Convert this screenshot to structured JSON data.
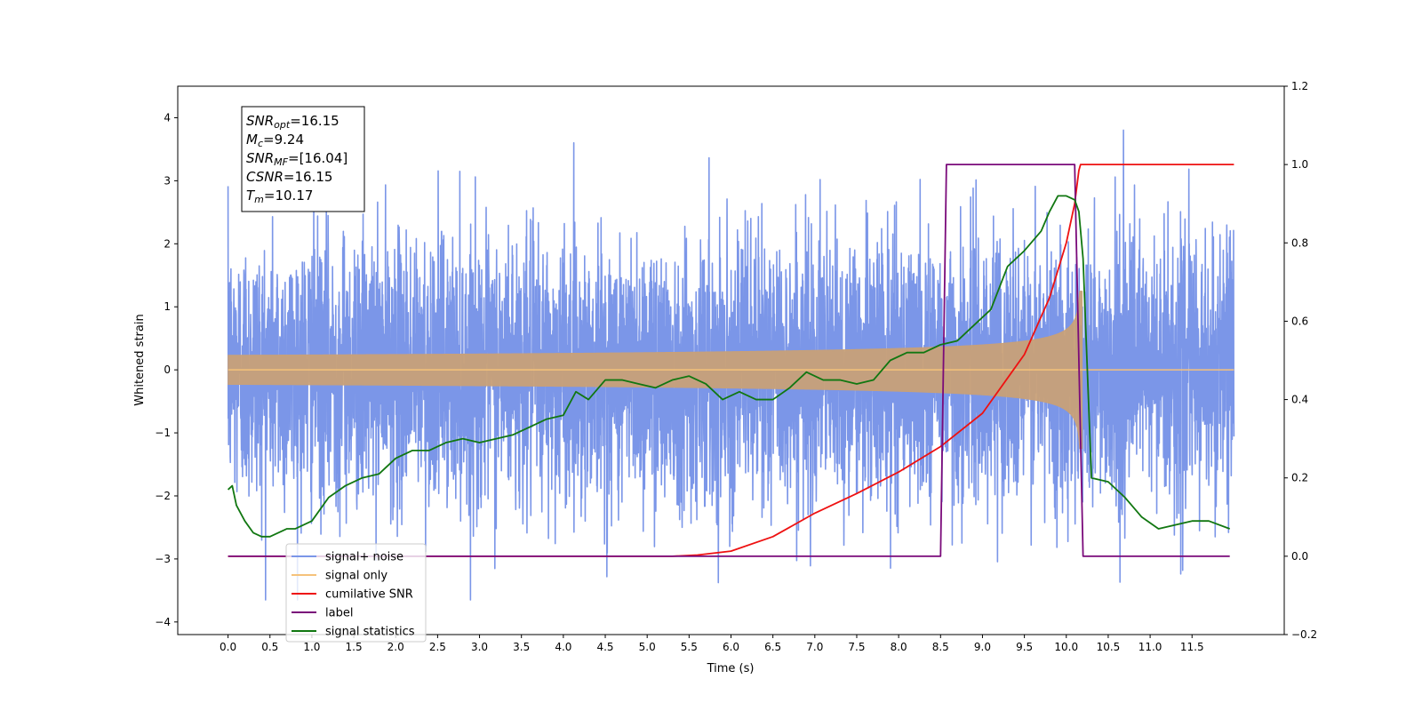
{
  "chart_data": {
    "type": "line",
    "xlabel": "Time (s)",
    "ylabel_left": "Whitened strain",
    "ylabel_right": "",
    "xlim": [
      -0.6,
      12.6
    ],
    "ylim_left": [
      -4.2,
      4.5
    ],
    "ylim_right": [
      -0.2,
      1.2
    ],
    "xticks": [
      "0.0",
      "0.5",
      "1.0",
      "1.5",
      "2.0",
      "2.5",
      "3.0",
      "3.5",
      "4.0",
      "4.5",
      "5.0",
      "5.5",
      "6.0",
      "6.5",
      "7.0",
      "7.5",
      "8.0",
      "8.5",
      "9.0",
      "9.5",
      "10.0",
      "10.5",
      "11.0",
      "11.5"
    ],
    "yticks_left": [
      "−4",
      "−3",
      "−2",
      "−1",
      "0",
      "1",
      "2",
      "3",
      "4"
    ],
    "yticks_right": [
      "−0.2",
      "0.0",
      "0.2",
      "0.4",
      "0.6",
      "0.8",
      "1.0",
      "1.2"
    ],
    "annotation": {
      "lines": [
        {
          "sym": "SNR",
          "sub": "opt",
          "val": "=16.15"
        },
        {
          "sym": "M",
          "sub": "c",
          "val": "=9.24"
        },
        {
          "sym": "SNR",
          "sub": "MF",
          "val": "=[16.04]"
        },
        {
          "sym": "CSNR",
          "sub": "",
          "val": "=16.15"
        },
        {
          "sym": "T",
          "sub": "m",
          "val": "=10.17"
        }
      ]
    },
    "legend": {
      "position": "lower-left",
      "entries": [
        {
          "name": "signal+ noise",
          "color": "#7b96e8"
        },
        {
          "name": "signal only",
          "color": "#f5c27a"
        },
        {
          "name": "cumilative SNR",
          "color": "#ee1111"
        },
        {
          "name": "label",
          "color": "#7a0a7a"
        },
        {
          "name": "signal statistics",
          "color": "#117711"
        }
      ]
    },
    "series": [
      {
        "name": "signal+ noise",
        "axis": "left",
        "x_range": [
          0.0,
          12.0
        ],
        "amplitude_sigma": 1.0,
        "color": "#7b96e8"
      },
      {
        "name": "signal only",
        "axis": "left",
        "x_range": [
          0.0,
          12.0
        ],
        "merger_time": 10.17,
        "peak_amplitude": 1.25,
        "color": "#c8a078"
      },
      {
        "name": "cumilative SNR",
        "axis": "right",
        "x": [
          0.0,
          5.3,
          5.6,
          6.0,
          6.5,
          7.0,
          7.5,
          8.0,
          8.5,
          9.0,
          9.5,
          9.8,
          10.0,
          10.1,
          10.15,
          10.17,
          10.18,
          11.5,
          12.0
        ],
        "y": [
          0.0,
          0.0,
          0.003,
          0.013,
          0.05,
          0.11,
          0.16,
          0.215,
          0.28,
          0.365,
          0.515,
          0.66,
          0.8,
          0.9,
          0.985,
          1.0,
          1.0,
          1.0,
          1.0
        ],
        "color": "#ee1111"
      },
      {
        "name": "label",
        "axis": "right",
        "x": [
          0.0,
          8.5,
          8.57,
          10.1,
          10.2,
          11.95
        ],
        "y": [
          0.0,
          0.0,
          1.0,
          1.0,
          0.0,
          0.0
        ],
        "color": "#7a0a7a"
      },
      {
        "name": "signal statistics",
        "axis": "right",
        "x": [
          0.0,
          0.05,
          0.1,
          0.2,
          0.3,
          0.4,
          0.5,
          0.6,
          0.7,
          0.8,
          1.0,
          1.2,
          1.4,
          1.6,
          1.8,
          2.0,
          2.2,
          2.4,
          2.6,
          2.8,
          3.0,
          3.2,
          3.4,
          3.6,
          3.8,
          4.0,
          4.15,
          4.3,
          4.5,
          4.7,
          4.9,
          5.1,
          5.3,
          5.5,
          5.7,
          5.9,
          6.1,
          6.3,
          6.5,
          6.7,
          6.9,
          7.1,
          7.3,
          7.5,
          7.7,
          7.9,
          8.1,
          8.3,
          8.5,
          8.7,
          8.9,
          9.1,
          9.3,
          9.5,
          9.7,
          9.8,
          9.9,
          10.0,
          10.1,
          10.15,
          10.2,
          10.3,
          10.5,
          10.7,
          10.9,
          11.1,
          11.3,
          11.5,
          11.7,
          11.95
        ],
        "y": [
          0.17,
          0.18,
          0.13,
          0.09,
          0.06,
          0.05,
          0.05,
          0.06,
          0.07,
          0.07,
          0.09,
          0.15,
          0.18,
          0.2,
          0.21,
          0.25,
          0.27,
          0.27,
          0.29,
          0.3,
          0.29,
          0.3,
          0.31,
          0.33,
          0.35,
          0.36,
          0.42,
          0.4,
          0.45,
          0.45,
          0.44,
          0.43,
          0.45,
          0.46,
          0.44,
          0.4,
          0.42,
          0.4,
          0.4,
          0.43,
          0.47,
          0.45,
          0.45,
          0.44,
          0.45,
          0.5,
          0.52,
          0.52,
          0.54,
          0.55,
          0.59,
          0.63,
          0.74,
          0.78,
          0.83,
          0.88,
          0.92,
          0.92,
          0.91,
          0.88,
          0.76,
          0.2,
          0.19,
          0.15,
          0.1,
          0.07,
          0.08,
          0.09,
          0.09,
          0.07
        ],
        "color": "#117711"
      }
    ]
  }
}
